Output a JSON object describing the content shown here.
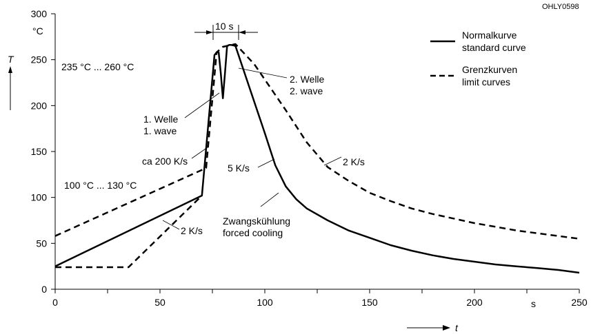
{
  "figure_id": "OHLY0598",
  "y_unit": "°C",
  "x_unit": "s",
  "y_axis_symbol": "T",
  "x_axis_symbol": "t",
  "legend": {
    "normal": [
      "Normalkurve",
      "standard curve"
    ],
    "limit": [
      "Grenzkurven",
      "limit curves"
    ]
  },
  "annotations": {
    "dwell": "10 s",
    "peak_range": "235 °C ... 260 °C",
    "preheat_range": "100 °C ... 130 °C",
    "wave1": [
      "1. Welle",
      "1. wave"
    ],
    "wave2": [
      "2. Welle",
      "2. wave"
    ],
    "ramp": "ca 200 K/s",
    "cool_standard": "5 K/s",
    "cool_limit": "2 K/s",
    "heat_limit": "2 K/s",
    "forced": [
      "Zwangskühlung",
      "forced cooling"
    ]
  },
  "chart_data": {
    "type": "line",
    "xlim": [
      0,
      250
    ],
    "ylim": [
      0,
      300
    ],
    "x_ticks": [
      0,
      50,
      100,
      150,
      200,
      250
    ],
    "y_ticks": [
      0,
      50,
      100,
      150,
      200,
      250,
      300
    ],
    "x_minor_ticks": [
      25,
      75,
      125,
      175,
      225
    ],
    "series": [
      {
        "name": "Normalkurve / standard curve",
        "style": "solid",
        "points": [
          [
            0,
            25
          ],
          [
            70,
            102
          ],
          [
            76,
            255
          ],
          [
            77,
            258
          ],
          [
            78,
            258
          ],
          [
            79,
            235
          ],
          [
            80,
            208
          ],
          [
            81,
            235
          ],
          [
            82,
            265
          ],
          [
            83,
            266
          ],
          [
            84,
            266
          ],
          [
            86,
            265
          ],
          [
            100,
            170
          ],
          [
            105,
            135
          ],
          [
            110,
            112
          ],
          [
            115,
            98
          ],
          [
            120,
            88
          ],
          [
            130,
            75
          ],
          [
            140,
            64
          ],
          [
            150,
            56
          ],
          [
            160,
            48
          ],
          [
            170,
            42
          ],
          [
            180,
            37
          ],
          [
            190,
            33
          ],
          [
            200,
            30
          ],
          [
            210,
            27
          ],
          [
            220,
            25
          ],
          [
            230,
            23
          ],
          [
            240,
            21
          ],
          [
            250,
            18
          ]
        ]
      },
      {
        "name": "Grenzkurven / limit curves (upper)",
        "style": "dashed",
        "points": [
          [
            0,
            58
          ],
          [
            72,
            132
          ],
          [
            77,
            258
          ],
          [
            80,
            264
          ],
          [
            86,
            267
          ],
          [
            95,
            245
          ],
          [
            110,
            195
          ],
          [
            120,
            160
          ],
          [
            130,
            133
          ],
          [
            140,
            118
          ],
          [
            150,
            105
          ],
          [
            160,
            96
          ],
          [
            170,
            88
          ],
          [
            180,
            82
          ],
          [
            190,
            77
          ],
          [
            200,
            72
          ],
          [
            210,
            68
          ],
          [
            220,
            64
          ],
          [
            230,
            61
          ],
          [
            240,
            58
          ],
          [
            250,
            55
          ]
        ]
      },
      {
        "name": "Grenzkurven / limit curves (lower)",
        "style": "dashed",
        "points": [
          [
            0,
            24
          ],
          [
            35,
            24
          ],
          [
            70,
            102
          ]
        ]
      }
    ]
  }
}
